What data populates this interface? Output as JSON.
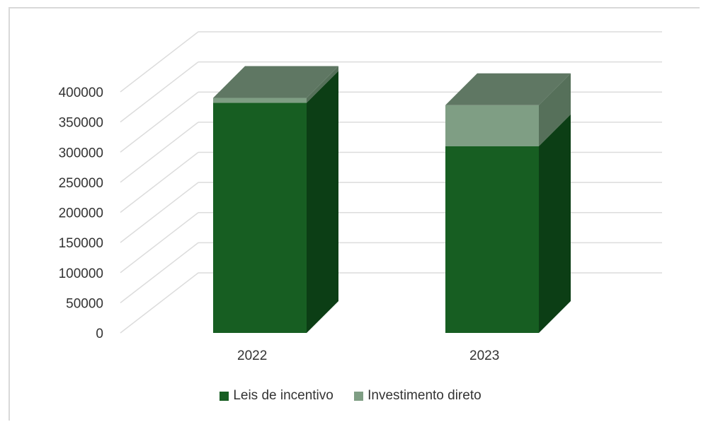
{
  "chart_data": {
    "type": "bar",
    "stacked": true,
    "three_d": true,
    "categories": [
      "2022",
      "2023"
    ],
    "series": [
      {
        "name": "Leis de incentivo",
        "values": [
          382000,
          310000
        ],
        "color": "#175e22",
        "side_color": "#0c3e15",
        "top_color": "#56705a"
      },
      {
        "name": "Investimento direto",
        "values": [
          8000,
          68000
        ],
        "color": "#7f9e84",
        "side_color": "#56705a",
        "top_color": "#5f7763"
      }
    ],
    "ylim": [
      0,
      400000
    ],
    "yticks": [
      "0",
      "50000",
      "100000",
      "150000",
      "200000",
      "250000",
      "300000",
      "350000",
      "400000"
    ],
    "grid": true,
    "legend_position": "bottom",
    "title": "",
    "xlabel": "",
    "ylabel": ""
  }
}
